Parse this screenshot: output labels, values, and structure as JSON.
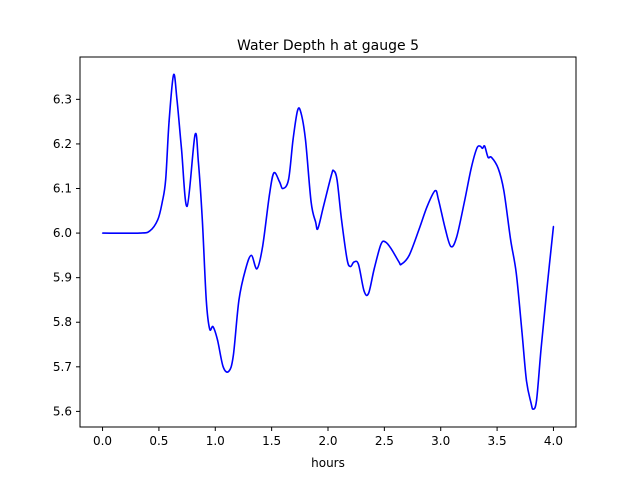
{
  "chart_data": {
    "type": "line",
    "title": "Water Depth h at gauge 5",
    "xlabel": "hours",
    "ylabel": "",
    "xlim": [
      -0.2,
      4.2
    ],
    "ylim": [
      5.565,
      6.395
    ],
    "xticks": [
      0.0,
      0.5,
      1.0,
      1.5,
      2.0,
      2.5,
      3.0,
      3.5,
      4.0
    ],
    "xtick_labels": [
      "0.0",
      "0.5",
      "1.0",
      "1.5",
      "2.0",
      "2.5",
      "3.0",
      "3.5",
      "4.0"
    ],
    "yticks": [
      5.6,
      5.7,
      5.8,
      5.9,
      6.0,
      6.1,
      6.2,
      6.3
    ],
    "ytick_labels": [
      "5.6",
      "5.7",
      "5.8",
      "5.9",
      "6.0",
      "6.1",
      "6.2",
      "6.3"
    ],
    "grid": false,
    "series": [
      {
        "name": "h",
        "color": "#0000ff",
        "x": [
          0.0,
          0.33,
          0.42,
          0.49,
          0.53,
          0.56,
          0.59,
          0.63,
          0.66,
          0.7,
          0.75,
          0.82,
          0.85,
          0.885,
          0.92,
          0.95,
          0.98,
          1.02,
          1.07,
          1.12,
          1.16,
          1.21,
          1.27,
          1.32,
          1.37,
          1.42,
          1.48,
          1.52,
          1.57,
          1.6,
          1.65,
          1.69,
          1.73,
          1.76,
          1.8,
          1.85,
          1.89,
          1.91,
          1.96,
          2.03,
          2.05,
          2.08,
          2.12,
          2.17,
          2.2,
          2.23,
          2.27,
          2.32,
          2.36,
          2.41,
          2.47,
          2.51,
          2.56,
          2.63,
          2.65,
          2.72,
          2.81,
          2.88,
          2.95,
          2.98,
          3.04,
          3.09,
          3.14,
          3.21,
          3.27,
          3.32,
          3.35,
          3.37,
          3.39,
          3.42,
          3.45,
          3.51,
          3.56,
          3.62,
          3.67,
          3.72,
          3.76,
          3.8,
          3.82,
          3.85,
          3.89,
          3.94,
          4.0
        ],
        "y": [
          6.0,
          6.0,
          6.005,
          6.03,
          6.07,
          6.12,
          6.25,
          6.355,
          6.3,
          6.19,
          6.06,
          6.22,
          6.16,
          6.03,
          5.85,
          5.785,
          5.79,
          5.76,
          5.7,
          5.69,
          5.725,
          5.85,
          5.92,
          5.95,
          5.92,
          5.97,
          6.085,
          6.135,
          6.115,
          6.1,
          6.12,
          6.21,
          6.275,
          6.27,
          6.21,
          6.07,
          6.025,
          6.01,
          6.06,
          6.13,
          6.14,
          6.12,
          6.03,
          5.94,
          5.925,
          5.935,
          5.93,
          5.87,
          5.865,
          5.92,
          5.975,
          5.98,
          5.965,
          5.935,
          5.93,
          5.95,
          6.01,
          6.06,
          6.095,
          6.075,
          6.01,
          5.97,
          5.99,
          6.07,
          6.145,
          6.19,
          6.195,
          6.19,
          6.195,
          6.17,
          6.17,
          6.145,
          6.095,
          5.985,
          5.91,
          5.78,
          5.67,
          5.62,
          5.605,
          5.625,
          5.74,
          5.87,
          6.015
        ]
      }
    ]
  }
}
